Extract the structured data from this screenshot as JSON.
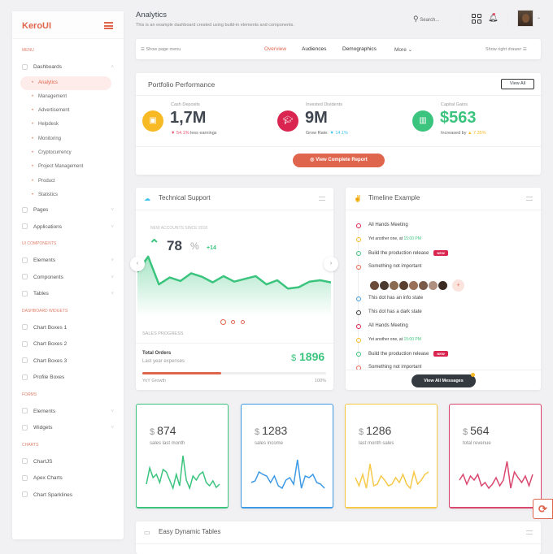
{
  "brand": "KeroUI",
  "header": {
    "title": "Analytics",
    "subtitle": "This is an example dashboard created using build-in elements and components.",
    "search_placeholder": "Search..."
  },
  "sidebar": [
    {
      "type": "section",
      "label": "Menu"
    },
    {
      "type": "item",
      "label": "Dashboards",
      "chevron": "up"
    },
    {
      "type": "sub",
      "label": "Analytics",
      "active": true
    },
    {
      "type": "sub",
      "label": "Management"
    },
    {
      "type": "sub",
      "label": "Advertisement"
    },
    {
      "type": "sub",
      "label": "Helpdesk"
    },
    {
      "type": "sub",
      "label": "Monitoring"
    },
    {
      "type": "sub",
      "label": "Cryptocurrency"
    },
    {
      "type": "sub",
      "label": "Project Management"
    },
    {
      "type": "sub",
      "label": "Product"
    },
    {
      "type": "sub",
      "label": "Statistics"
    },
    {
      "type": "item",
      "label": "Pages",
      "chevron": "down"
    },
    {
      "type": "item",
      "label": "Applications",
      "chevron": "down"
    },
    {
      "type": "section",
      "label": "UI Components"
    },
    {
      "type": "item",
      "label": "Elements",
      "chevron": "down"
    },
    {
      "type": "item",
      "label": "Components",
      "chevron": "down"
    },
    {
      "type": "item",
      "label": "Tables",
      "chevron": "down"
    },
    {
      "type": "section",
      "label": "Dashboard Widgets"
    },
    {
      "type": "item",
      "label": "Chart Boxes 1"
    },
    {
      "type": "item",
      "label": "Chart Boxes 2"
    },
    {
      "type": "item",
      "label": "Chart Boxes 3"
    },
    {
      "type": "item",
      "label": "Profile Boxes"
    },
    {
      "type": "section",
      "label": "Forms"
    },
    {
      "type": "item",
      "label": "Elements",
      "chevron": "down"
    },
    {
      "type": "item",
      "label": "Widgets",
      "chevron": "down"
    },
    {
      "type": "section",
      "label": "Charts"
    },
    {
      "type": "item",
      "label": "ChartJS"
    },
    {
      "type": "item",
      "label": "Apex Charts"
    },
    {
      "type": "item",
      "label": "Chart Sparklines"
    }
  ],
  "nav": {
    "show_page_menu": "Show page menu",
    "tabs": [
      "Overview",
      "Audiences",
      "Demographics",
      "More"
    ],
    "show_right_drawer": "Show right drawer"
  },
  "portfolio": {
    "title": "Portfolio Performance",
    "view_all": "View All",
    "kpis": [
      {
        "label": "Cash Deposits",
        "value": "1,7M",
        "change": "54.1%",
        "change_text": "less earnings",
        "color": "#f7b924",
        "value_color": "#3f4650",
        "change_color": "#e84e6b",
        "arrow": "▼"
      },
      {
        "label": "Invested Dividents",
        "value": "9M",
        "prefix": "Grow Rate:",
        "change": "14.1%",
        "color": "#d92550",
        "value_color": "#3f4650",
        "change_color": "#3ac2f0",
        "arrow": "▼"
      },
      {
        "label": "Capital Gains",
        "value": "$563",
        "prefix": "Increased by",
        "change": "7.35%",
        "color": "#3ac47d",
        "value_color": "#3ac47d",
        "change_color": "#f7b924",
        "arrow": "▲"
      }
    ],
    "report_button": "View Complete Report"
  },
  "tech_support": {
    "title": "Technical Support",
    "caption": "New accounts since 2018",
    "value": "78",
    "unit": "%",
    "delta": "+14",
    "chart_values": [
      40,
      62,
      22,
      32,
      27,
      38,
      33,
      25,
      34,
      26,
      30,
      34,
      22,
      28,
      16,
      18,
      26,
      28,
      25
    ],
    "sales_progress": "Sales Progress",
    "orders_title": "Total Orders",
    "orders_sub": "Last year expenses",
    "orders_value": "1896",
    "currency": "$",
    "progress": 43,
    "progress_left": "YoY Growth",
    "progress_right": "100%"
  },
  "timeline": {
    "title": "Timeline Example",
    "items": [
      {
        "text": "All Hands Meeting",
        "color": "#d92550"
      },
      {
        "text": "Yet another one, at ",
        "time": "15:00 PM",
        "color": "#f7b924",
        "small": true
      },
      {
        "text": "Build the production release",
        "badge": "NEW",
        "color": "#3ac47d"
      },
      {
        "text": "Something not important",
        "color": "#e0654d",
        "avatars": 8
      },
      {
        "text": "This dot has an info state",
        "color": "#3f9ae5"
      },
      {
        "text": "This dot has a dark state",
        "color": "#343a40"
      },
      {
        "text": "All Hands Meeting",
        "color": "#d92550"
      },
      {
        "text": "Yet another one, at ",
        "time": "15:00 PM",
        "color": "#f7b924",
        "small": true
      },
      {
        "text": "Build the production release",
        "badge": "NEW",
        "color": "#3ac47d"
      },
      {
        "text": "Something not important",
        "color": "#e0654d"
      }
    ],
    "button": "View All Messages"
  },
  "stats": [
    {
      "value": "874",
      "label": "sales last month",
      "color": "#3ac47d",
      "spark": [
        10,
        30,
        18,
        22,
        12,
        28,
        25,
        15,
        5,
        22,
        8,
        45,
        15,
        5,
        20,
        15,
        22,
        25,
        12,
        8,
        14,
        6,
        10
      ]
    },
    {
      "value": "1283",
      "label": "sales income",
      "color": "#3f9ae5",
      "spark": [
        12,
        14,
        25,
        22,
        20,
        12,
        20,
        8,
        5,
        15,
        18,
        10,
        40,
        5,
        20,
        18,
        22,
        12,
        10,
        5
      ]
    },
    {
      "value": "1286",
      "label": "last month sales",
      "color": "#f7c948",
      "spark": [
        18,
        8,
        22,
        5,
        35,
        8,
        10,
        20,
        15,
        8,
        10,
        18,
        12,
        22,
        10,
        5,
        25,
        10,
        15,
        22,
        25
      ]
    },
    {
      "value": "564",
      "label": "total revenue",
      "color": "#d9486e",
      "spark": [
        15,
        22,
        10,
        20,
        15,
        22,
        8,
        12,
        5,
        10,
        18,
        8,
        15,
        38,
        5,
        25,
        18,
        12,
        20,
        8,
        22
      ]
    }
  ],
  "tables_card": {
    "title": "Easy Dynamic Tables"
  },
  "currency": "$"
}
